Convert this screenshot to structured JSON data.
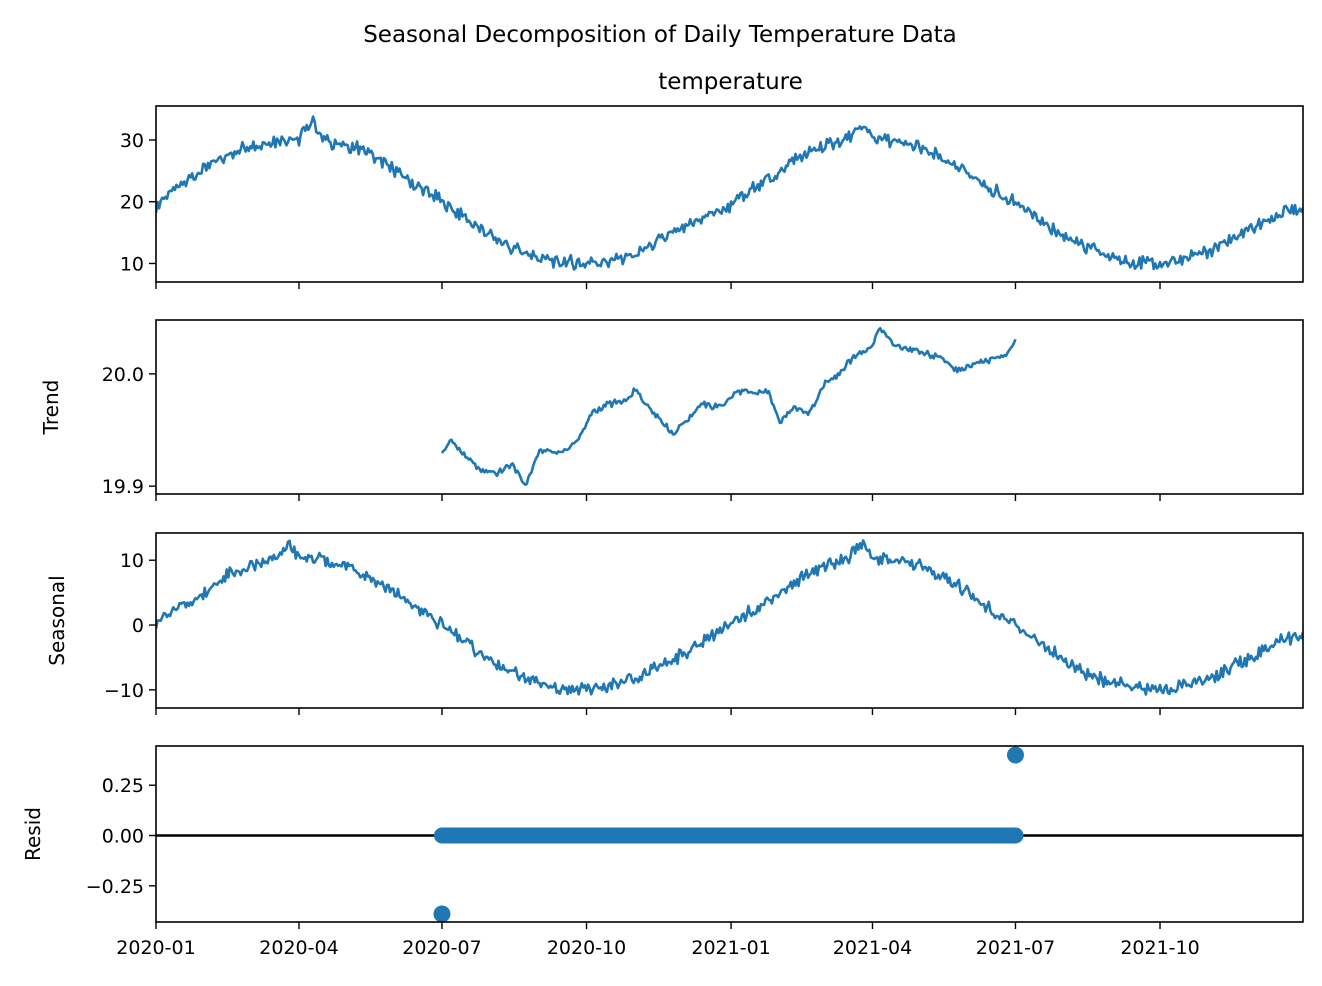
{
  "figure": {
    "title": "Seasonal Decomposition of Daily Temperature Data",
    "line_color": "#1f77b4",
    "zero_line_color": "#000000"
  },
  "chart_data": [
    {
      "type": "line",
      "title": "temperature",
      "ylabel": "",
      "x_range": [
        "2020-01-01",
        "2021-12-31"
      ],
      "x_ticks": [
        "2020-01",
        "2020-04",
        "2020-07",
        "2020-10",
        "2021-01",
        "2021-04",
        "2021-07",
        "2021-10"
      ],
      "y_ticks": [
        10,
        20,
        30
      ],
      "ylim": [
        7,
        35.5
      ],
      "series": [
        {
          "points": [
            [
              "2020-01-01",
              19.5
            ],
            [
              "2020-01-15",
              22.5
            ],
            [
              "2020-02-01",
              25.5
            ],
            [
              "2020-02-15",
              27.5
            ],
            [
              "2020-03-01",
              29
            ],
            [
              "2020-03-15",
              29.8
            ],
            [
              "2020-04-01",
              30.2
            ],
            [
              "2020-04-10",
              33.5
            ],
            [
              "2020-04-15",
              30
            ],
            [
              "2020-05-01",
              29.2
            ],
            [
              "2020-05-15",
              28
            ],
            [
              "2020-06-01",
              25
            ],
            [
              "2020-06-15",
              22.5
            ],
            [
              "2020-07-01",
              20
            ],
            [
              "2020-07-15",
              17.5
            ],
            [
              "2020-08-01",
              14.5
            ],
            [
              "2020-08-15",
              12.5
            ],
            [
              "2020-09-01",
              11
            ],
            [
              "2020-09-15",
              10.3
            ],
            [
              "2020-10-01",
              10
            ],
            [
              "2020-10-15",
              10.4
            ],
            [
              "2020-11-01",
              11.5
            ],
            [
              "2020-11-15",
              13.5
            ],
            [
              "2020-12-01",
              15.5
            ],
            [
              "2020-12-15",
              17.5
            ],
            [
              "2021-01-01",
              19.5
            ],
            [
              "2021-01-15",
              22
            ],
            [
              "2021-02-01",
              25
            ],
            [
              "2021-02-15",
              27.5
            ],
            [
              "2021-03-01",
              29
            ],
            [
              "2021-03-15",
              30
            ],
            [
              "2021-03-25",
              32.5
            ],
            [
              "2021-04-01",
              30.5
            ],
            [
              "2021-04-15",
              30
            ],
            [
              "2021-05-01",
              28.8
            ],
            [
              "2021-05-15",
              27
            ],
            [
              "2021-06-01",
              24.5
            ],
            [
              "2021-06-15",
              22
            ],
            [
              "2021-07-01",
              20
            ],
            [
              "2021-07-15",
              17
            ],
            [
              "2021-08-01",
              14.5
            ],
            [
              "2021-08-15",
              12.5
            ],
            [
              "2021-09-01",
              11
            ],
            [
              "2021-09-15",
              10.3
            ],
            [
              "2021-10-01",
              10
            ],
            [
              "2021-10-15",
              10.5
            ],
            [
              "2021-11-01",
              12
            ],
            [
              "2021-11-15",
              14
            ],
            [
              "2021-12-01",
              16
            ],
            [
              "2021-12-15",
              18
            ],
            [
              "2021-12-31",
              19
            ]
          ]
        }
      ]
    },
    {
      "type": "line",
      "title": "",
      "ylabel": "Trend",
      "x_range": [
        "2020-01-01",
        "2021-12-31"
      ],
      "x_ticks": [
        "2020-01",
        "2020-04",
        "2020-07",
        "2020-10",
        "2021-01",
        "2021-04",
        "2021-07",
        "2021-10"
      ],
      "y_ticks": [
        19.9,
        20.0
      ],
      "y_tick_labels": [
        "19.9",
        "20.0"
      ],
      "ylim": [
        19.893,
        20.048
      ],
      "series": [
        {
          "points": [
            [
              "2020-07-01",
              19.93
            ],
            [
              "2020-07-07",
              19.941
            ],
            [
              "2020-07-15",
              19.928
            ],
            [
              "2020-07-25",
              19.915
            ],
            [
              "2020-08-05",
              19.912
            ],
            [
              "2020-08-15",
              19.92
            ],
            [
              "2020-08-23",
              19.9
            ],
            [
              "2020-09-01",
              19.932
            ],
            [
              "2020-09-15",
              19.93
            ],
            [
              "2020-09-25",
              19.94
            ],
            [
              "2020-10-05",
              19.966
            ],
            [
              "2020-10-15",
              19.973
            ],
            [
              "2020-10-25",
              19.975
            ],
            [
              "2020-11-01",
              19.985
            ],
            [
              "2020-11-10",
              19.97
            ],
            [
              "2020-11-25",
              19.947
            ],
            [
              "2020-12-05",
              19.96
            ],
            [
              "2020-12-12",
              19.973
            ],
            [
              "2020-12-25",
              19.97
            ],
            [
              "2021-01-05",
              19.985
            ],
            [
              "2021-01-15",
              19.982
            ],
            [
              "2021-01-25",
              19.984
            ],
            [
              "2021-02-01",
              19.957
            ],
            [
              "2021-02-10",
              19.97
            ],
            [
              "2021-02-20",
              19.965
            ],
            [
              "2021-03-01",
              19.99
            ],
            [
              "2021-03-10",
              20.0
            ],
            [
              "2021-03-20",
              20.015
            ],
            [
              "2021-04-01",
              20.025
            ],
            [
              "2021-04-05",
              20.042
            ],
            [
              "2021-04-15",
              20.025
            ],
            [
              "2021-04-25",
              20.022
            ],
            [
              "2021-05-05",
              20.018
            ],
            [
              "2021-05-15",
              20.015
            ],
            [
              "2021-05-25",
              20.002
            ],
            [
              "2021-06-05",
              20.01
            ],
            [
              "2021-06-15",
              20.012
            ],
            [
              "2021-06-25",
              20.018
            ],
            [
              "2021-07-01",
              20.03
            ]
          ]
        }
      ]
    },
    {
      "type": "line",
      "title": "",
      "ylabel": "Seasonal",
      "x_range": [
        "2020-01-01",
        "2021-12-31"
      ],
      "x_ticks": [
        "2020-01",
        "2020-04",
        "2020-07",
        "2020-10",
        "2021-01",
        "2021-04",
        "2021-07",
        "2021-10"
      ],
      "y_ticks": [
        -10,
        0,
        10
      ],
      "y_tick_labels": [
        "−10",
        "0",
        "10"
      ],
      "ylim": [
        -12.8,
        14.2
      ],
      "series": [
        {
          "points": [
            [
              "2020-01-01",
              0.5
            ],
            [
              "2020-01-15",
              2.5
            ],
            [
              "2020-02-01",
              5
            ],
            [
              "2020-02-15",
              7.5
            ],
            [
              "2020-03-01",
              9
            ],
            [
              "2020-03-15",
              10
            ],
            [
              "2020-03-25",
              12.5
            ],
            [
              "2020-04-01",
              10.5
            ],
            [
              "2020-04-15",
              10
            ],
            [
              "2020-05-01",
              9
            ],
            [
              "2020-05-15",
              7.5
            ],
            [
              "2020-06-01",
              5
            ],
            [
              "2020-06-15",
              2.5
            ],
            [
              "2020-07-01",
              0
            ],
            [
              "2020-07-15",
              -2.5
            ],
            [
              "2020-08-01",
              -5.5
            ],
            [
              "2020-08-15",
              -7.5
            ],
            [
              "2020-09-01",
              -9
            ],
            [
              "2020-09-15",
              -9.8
            ],
            [
              "2020-10-01",
              -10
            ],
            [
              "2020-10-15",
              -9.5
            ],
            [
              "2020-11-01",
              -8.5
            ],
            [
              "2020-11-15",
              -6.5
            ],
            [
              "2020-12-01",
              -4.5
            ],
            [
              "2020-12-15",
              -2.5
            ],
            [
              "2021-01-01",
              0
            ],
            [
              "2021-01-15",
              2.5
            ],
            [
              "2021-02-01",
              5
            ],
            [
              "2021-02-15",
              7.5
            ],
            [
              "2021-03-01",
              9
            ],
            [
              "2021-03-15",
              10
            ],
            [
              "2021-03-25",
              12.5
            ],
            [
              "2021-04-01",
              10.5
            ],
            [
              "2021-04-15",
              10
            ],
            [
              "2021-05-01",
              9
            ],
            [
              "2021-05-15",
              7.5
            ],
            [
              "2021-06-01",
              5
            ],
            [
              "2021-06-15",
              2.5
            ],
            [
              "2021-07-01",
              0
            ],
            [
              "2021-07-15",
              -2.5
            ],
            [
              "2021-08-01",
              -5.5
            ],
            [
              "2021-08-15",
              -7.5
            ],
            [
              "2021-09-01",
              -9
            ],
            [
              "2021-09-15",
              -9.8
            ],
            [
              "2021-10-01",
              -10
            ],
            [
              "2021-10-15",
              -9.5
            ],
            [
              "2021-11-01",
              -8.5
            ],
            [
              "2021-11-15",
              -6.5
            ],
            [
              "2021-12-01",
              -4.5
            ],
            [
              "2021-12-15",
              -2.5
            ],
            [
              "2021-12-31",
              -1.5
            ]
          ]
        }
      ]
    },
    {
      "type": "scatter",
      "title": "",
      "ylabel": "Resid",
      "x_range": [
        "2020-01-01",
        "2021-12-31"
      ],
      "x_ticks": [
        "2020-01",
        "2020-04",
        "2020-07",
        "2020-10",
        "2021-01",
        "2021-04",
        "2021-07",
        "2021-10"
      ],
      "x_tick_labels": [
        "2020-01",
        "2020-04",
        "2020-07",
        "2020-10",
        "2021-01",
        "2021-04",
        "2021-07",
        "2021-10"
      ],
      "y_ticks": [
        -0.25,
        0.0,
        0.25
      ],
      "y_tick_labels": [
        "−0.25",
        "0.00",
        "0.25"
      ],
      "ylim": [
        -0.43,
        0.445
      ],
      "zero_line": 0,
      "series": [
        {
          "x_start": "2020-07-01",
          "x_end": "2021-07-01",
          "value": 0.0,
          "outliers": [
            [
              "2020-07-01",
              -0.39
            ],
            [
              "2021-07-01",
              0.4
            ]
          ]
        }
      ]
    }
  ]
}
